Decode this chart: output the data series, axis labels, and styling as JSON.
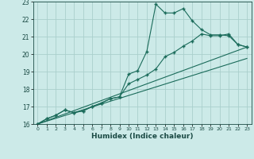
{
  "xlabel": "Humidex (Indice chaleur)",
  "bg_color": "#cceae8",
  "grid_color": "#aacfcc",
  "line_color": "#1a6b5a",
  "xlim": [
    -0.5,
    23.5
  ],
  "ylim": [
    16,
    23
  ],
  "xticks": [
    0,
    1,
    2,
    3,
    4,
    5,
    6,
    7,
    8,
    9,
    10,
    11,
    12,
    13,
    14,
    15,
    16,
    17,
    18,
    19,
    20,
    21,
    22,
    23
  ],
  "yticks": [
    16,
    17,
    18,
    19,
    20,
    21,
    22,
    23
  ],
  "line1_x": [
    0,
    1,
    2,
    3,
    4,
    5,
    6,
    7,
    8,
    9,
    10,
    11,
    12,
    13,
    14,
    15,
    16,
    17,
    18,
    19,
    20,
    21,
    22,
    23
  ],
  "line1_y": [
    16.0,
    16.3,
    16.5,
    16.8,
    16.65,
    16.75,
    17.0,
    17.2,
    17.45,
    17.55,
    18.85,
    19.05,
    20.15,
    22.85,
    22.35,
    22.35,
    22.6,
    21.9,
    21.4,
    21.1,
    21.1,
    21.05,
    20.55,
    20.4
  ],
  "line2_x": [
    0,
    1,
    2,
    3,
    4,
    5,
    6,
    7,
    8,
    9,
    10,
    11,
    12,
    13,
    14,
    15,
    16,
    17,
    18,
    19,
    20,
    21,
    22,
    23
  ],
  "line2_y": [
    16.0,
    16.3,
    16.5,
    16.8,
    16.65,
    16.75,
    17.0,
    17.2,
    17.45,
    17.55,
    18.3,
    18.55,
    18.8,
    19.15,
    19.85,
    20.1,
    20.45,
    20.75,
    21.15,
    21.05,
    21.05,
    21.15,
    20.55,
    20.4
  ],
  "line3_x": [
    0,
    23
  ],
  "line3_y": [
    16.0,
    20.4
  ],
  "line4_x": [
    0,
    23
  ],
  "line4_y": [
    16.0,
    19.75
  ]
}
